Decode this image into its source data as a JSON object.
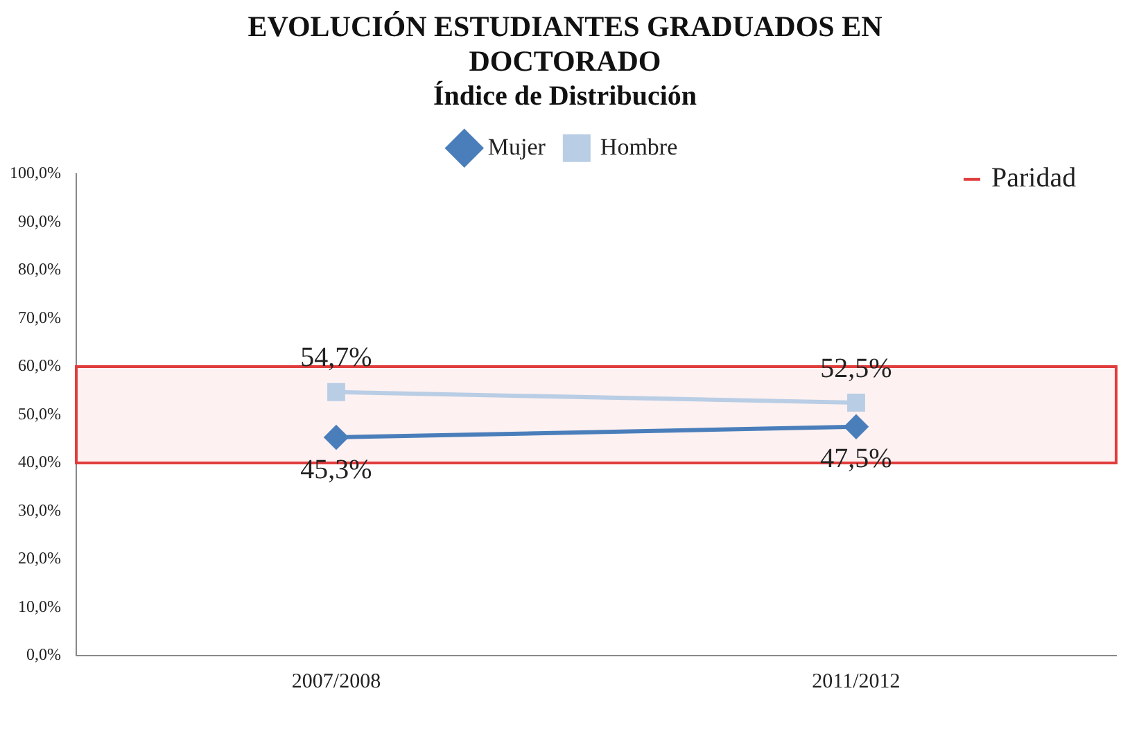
{
  "chart_data": {
    "type": "line",
    "title": [
      "EVOLUCIÓN ESTUDIANTES GRADUADOS EN",
      "DOCTORADO"
    ],
    "subtitle": "Índice de Distribución",
    "categories": [
      "2007/2008",
      "2011/2012"
    ],
    "series": [
      {
        "name": "Mujer",
        "color": "#4a7ebb",
        "marker": "diamond",
        "values": [
          45.3,
          47.5
        ],
        "value_labels": [
          "45,3%",
          "47,5%"
        ]
      },
      {
        "name": "Hombre",
        "color": "#b9cde5",
        "marker": "square",
        "values": [
          54.7,
          52.5
        ],
        "value_labels": [
          "54,7%",
          "52,5%"
        ]
      }
    ],
    "ylim": [
      0,
      100
    ],
    "yticks": [
      {
        "value": 0,
        "label": "0,0%"
      },
      {
        "value": 10,
        "label": "10,0%"
      },
      {
        "value": 20,
        "label": "20,0%"
      },
      {
        "value": 30,
        "label": "30,0%"
      },
      {
        "value": 40,
        "label": "40,0%"
      },
      {
        "value": 50,
        "label": "50,0%"
      },
      {
        "value": 60,
        "label": "60,0%"
      },
      {
        "value": 70,
        "label": "70,0%"
      },
      {
        "value": 80,
        "label": "80,0%"
      },
      {
        "value": 90,
        "label": "90,0%"
      },
      {
        "value": 100,
        "label": "100,0%"
      }
    ],
    "bands": [
      {
        "axis": "y",
        "from": 40,
        "to": 60,
        "label": "Paridad",
        "color": "#e03c3c"
      }
    ],
    "grid": false,
    "legend": "top"
  }
}
